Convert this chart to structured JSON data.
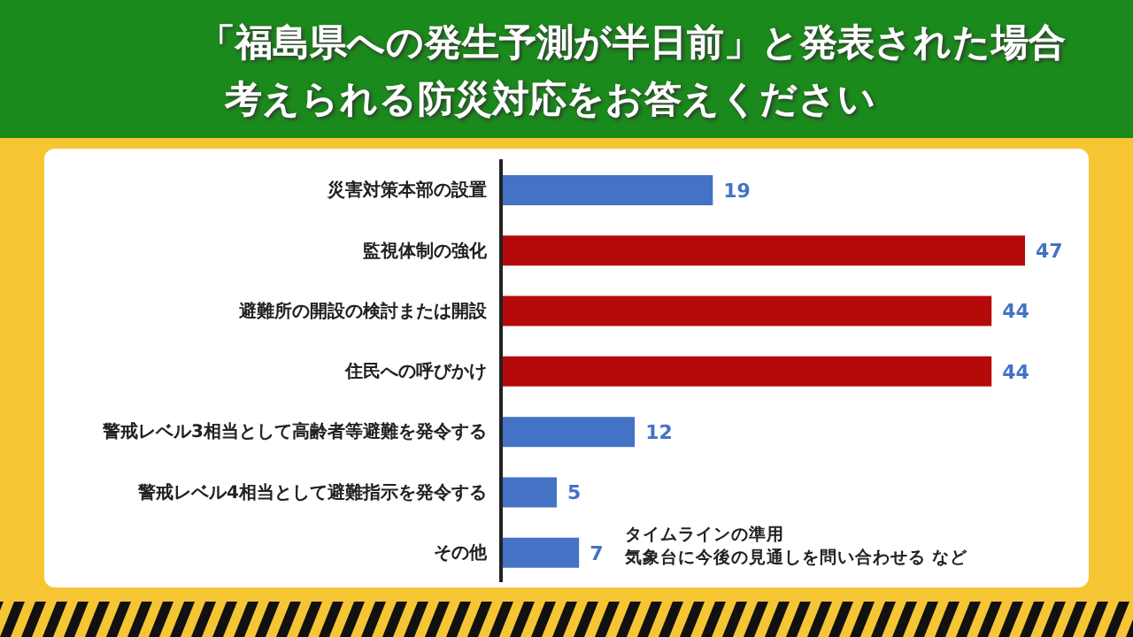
{
  "chart_data": {
    "type": "bar",
    "orientation": "horizontal",
    "title": "「福島県への発生予測が半日前」と発表された場合",
    "subtitle": "考えられる防災対応をお答えください",
    "categories": [
      "災害対策本部の設置",
      "監視体制の強化",
      "避難所の開設の検討または開設",
      "住民への呼びかけ",
      "警戒レベル3相当として高齢者等避難を発令する",
      "警戒レベル4相当として避難指示を発令する",
      "その他"
    ],
    "values": [
      19,
      47,
      44,
      44,
      12,
      5,
      7
    ],
    "colors": [
      "#4472c4",
      "#b50a0a",
      "#b50a0a",
      "#b50a0a",
      "#4472c4",
      "#4472c4",
      "#4472c4"
    ],
    "data_labels": true,
    "grid": false,
    "legend": false,
    "annotations": [
      "タイムラインの準用",
      "気象台に今後の見通しを問い合わせる など"
    ]
  }
}
